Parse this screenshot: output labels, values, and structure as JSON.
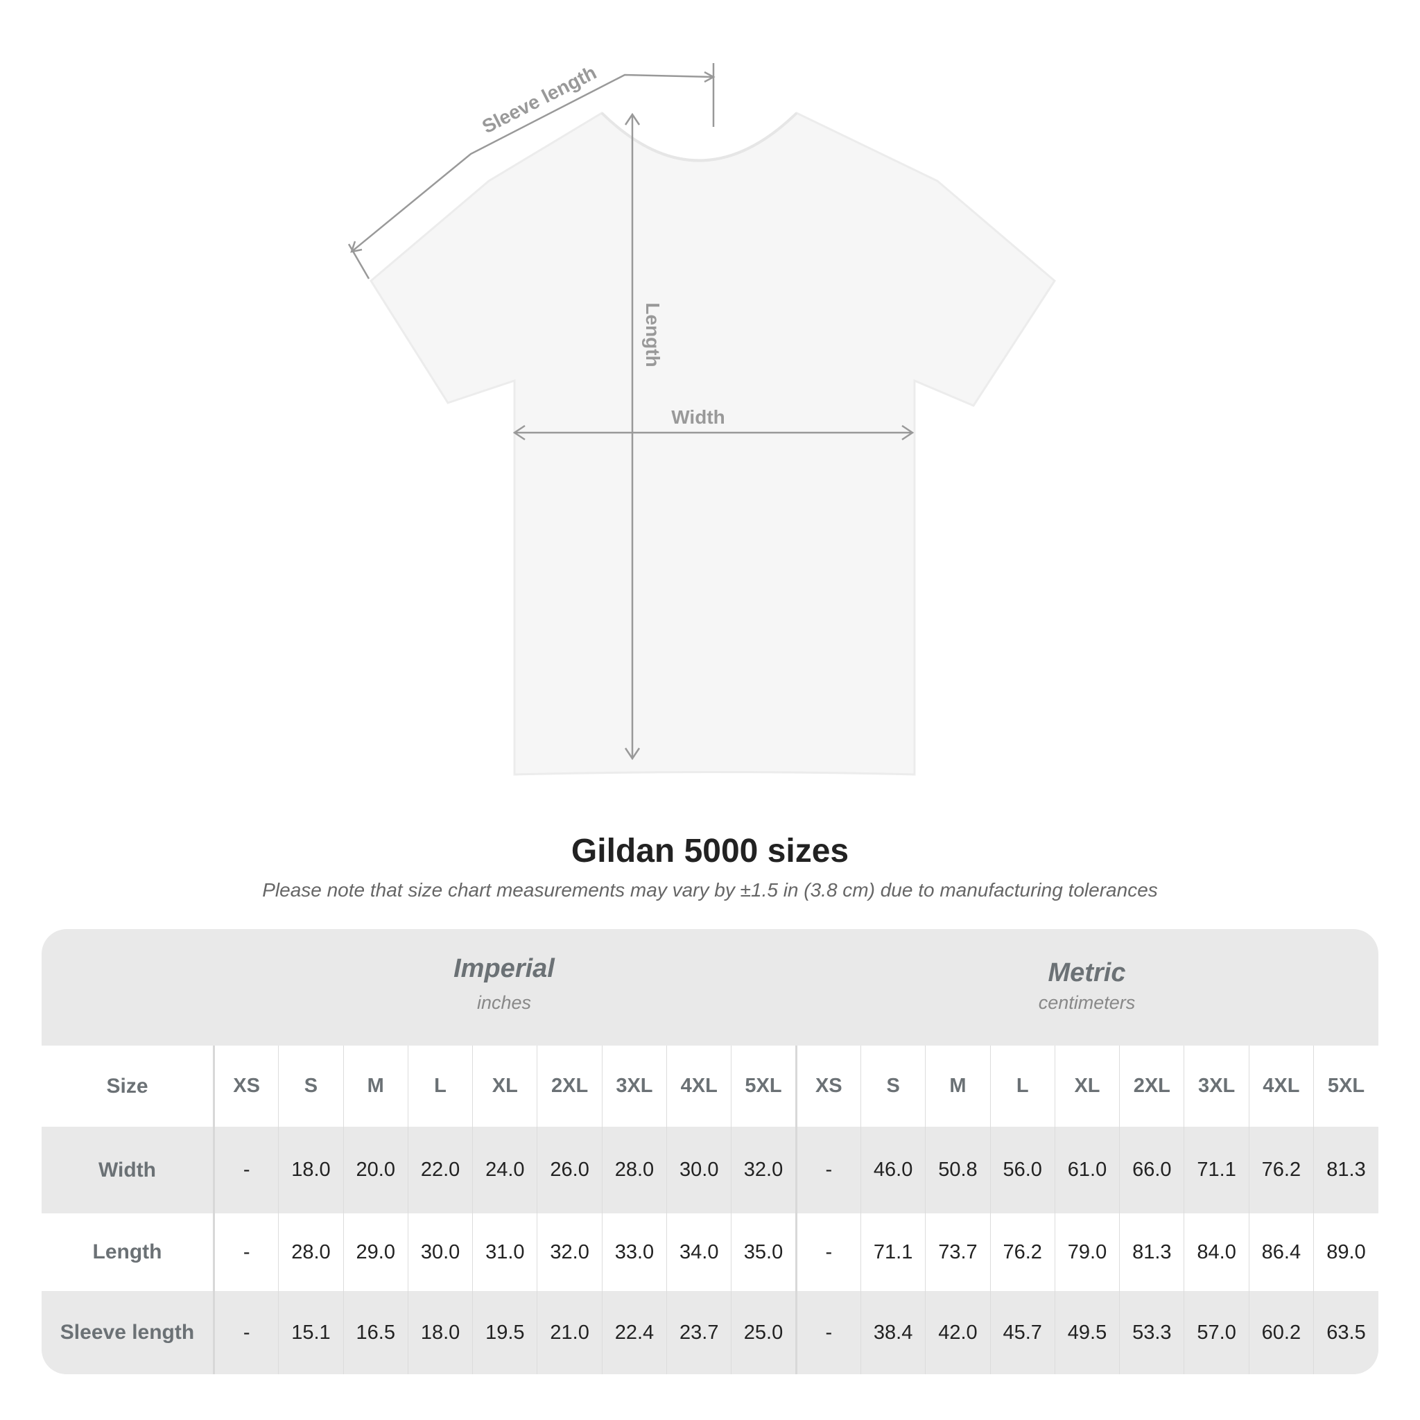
{
  "diagram": {
    "labels": {
      "sleeve": "Sleeve length",
      "length": "Length",
      "width": "Width"
    }
  },
  "title": "Gildan 5000 sizes",
  "subtitle": "Please note that size chart measurements may vary by ±1.5 in (3.8 cm) due to manufacturing tolerances",
  "table": {
    "imperial": {
      "name": "Imperial",
      "unit": "inches"
    },
    "metric": {
      "name": "Metric",
      "unit": "centimeters"
    },
    "size_label": "Size",
    "sizes": [
      "XS",
      "S",
      "M",
      "L",
      "XL",
      "2XL",
      "3XL",
      "4XL",
      "5XL"
    ],
    "rows": [
      {
        "label": "Width",
        "imperial": [
          "-",
          "18.0",
          "20.0",
          "22.0",
          "24.0",
          "26.0",
          "28.0",
          "30.0",
          "32.0"
        ],
        "metric": [
          "-",
          "46.0",
          "50.8",
          "56.0",
          "61.0",
          "66.0",
          "71.1",
          "76.2",
          "81.3"
        ]
      },
      {
        "label": "Length",
        "imperial": [
          "-",
          "28.0",
          "29.0",
          "30.0",
          "31.0",
          "32.0",
          "33.0",
          "34.0",
          "35.0"
        ],
        "metric": [
          "-",
          "71.1",
          "73.7",
          "76.2",
          "79.0",
          "81.3",
          "84.0",
          "86.4",
          "89.0"
        ]
      },
      {
        "label": "Sleeve length",
        "imperial": [
          "-",
          "15.1",
          "16.5",
          "18.0",
          "19.5",
          "21.0",
          "22.4",
          "23.7",
          "25.0"
        ],
        "metric": [
          "-",
          "38.4",
          "42.0",
          "45.7",
          "49.5",
          "53.3",
          "57.0",
          "60.2",
          "63.5"
        ]
      }
    ]
  },
  "colors": {
    "label_gray": "#6b7175",
    "band": "#e9e9e9",
    "arrow": "#999999"
  }
}
